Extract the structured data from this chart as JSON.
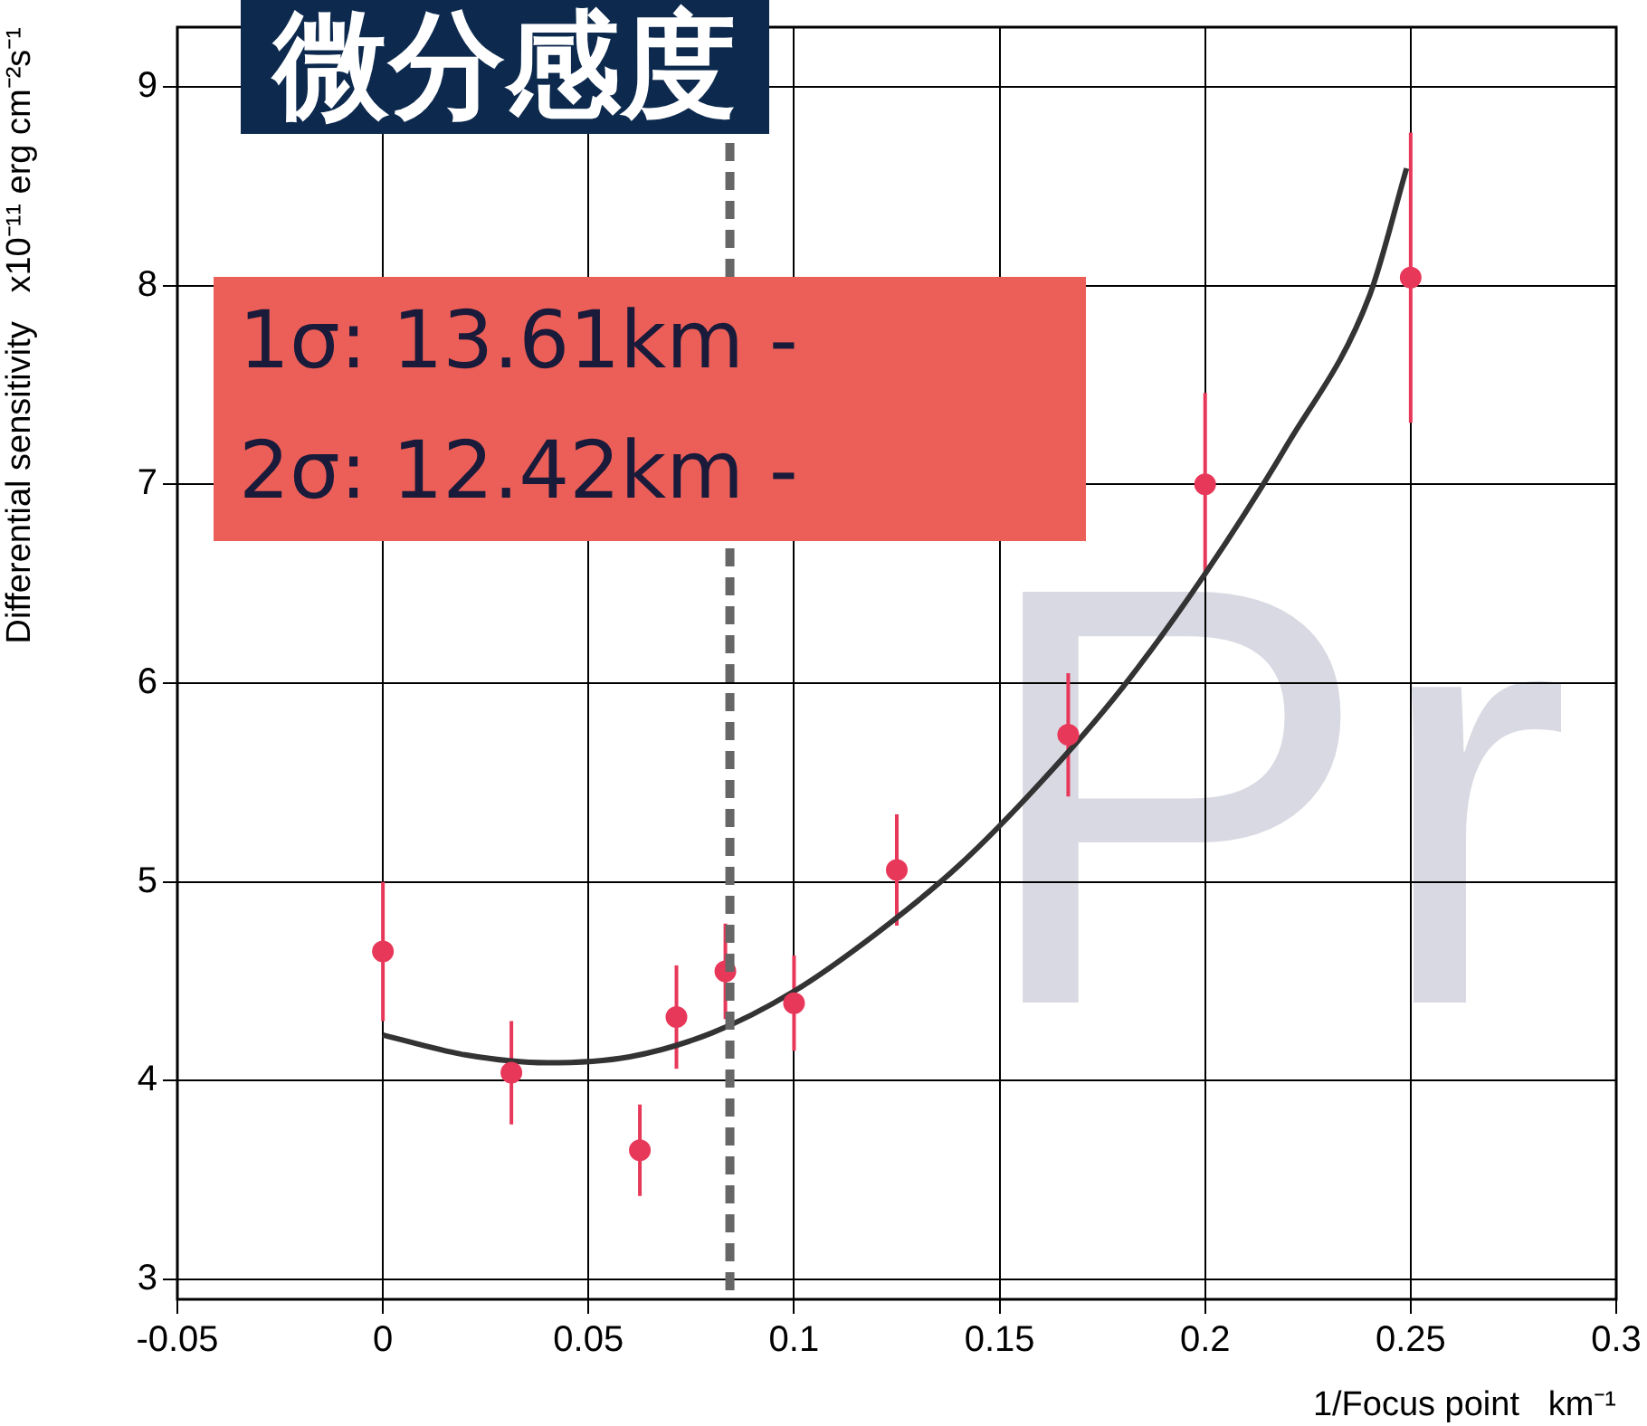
{
  "chart_data": {
    "type": "scatter",
    "title": "微分感度",
    "xlabel": "1/Focus point   km⁻¹",
    "ylabel": "Differential sensitivity   x10⁻¹¹ erg cm⁻²s⁻¹",
    "xlim": [
      -0.05,
      0.3
    ],
    "xticks": [
      -0.05,
      0,
      0.05,
      0.1,
      0.15,
      0.2,
      0.25,
      0.3
    ],
    "ylim": [
      2.9,
      9.3
    ],
    "yticks": [
      3,
      4,
      5,
      6,
      7,
      8,
      9
    ],
    "grid": true,
    "legend": false,
    "marker": "circle",
    "series": [
      {
        "color": "#e8385a",
        "x": [
          0,
          0.03125,
          0.0625,
          0.0714,
          0.0833,
          0.1,
          0.125,
          0.1667,
          0.2,
          0.25
        ],
        "values": [
          4.65,
          4.04,
          3.65,
          4.32,
          4.55,
          4.39,
          5.06,
          5.74,
          7.0,
          8.04
        ],
        "errors": [
          0.35,
          0.26,
          0.23,
          0.26,
          0.24,
          0.24,
          0.28,
          0.31,
          0.46,
          0.73
        ]
      },
      {
        "type": "line",
        "color": "#333333",
        "marker": "none",
        "x": [
          0,
          0.02,
          0.04,
          0.06,
          0.08,
          0.1,
          0.12,
          0.14,
          0.16,
          0.18,
          0.2,
          0.22,
          0.24,
          0.249
        ],
        "values": [
          4.23,
          4.13,
          4.09,
          4.12,
          4.24,
          4.45,
          4.74,
          5.08,
          5.5,
          5.98,
          6.55,
          7.2,
          7.95,
          8.59
        ]
      }
    ],
    "ref_lines": [
      {
        "axis": "x",
        "value": 0.0844,
        "color": "#666666",
        "line_style": "dashed"
      }
    ],
    "annotations": [
      "1σ: 13.61km -",
      "2σ: 12.42km -",
      "Pr"
    ]
  }
}
